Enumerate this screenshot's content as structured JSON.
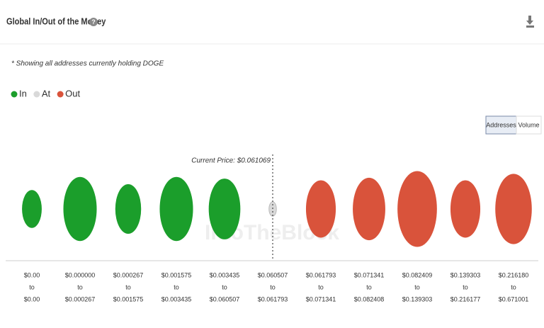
{
  "chart_data": {
    "type": "bubble",
    "title": "Global In/Out of the Money",
    "subtitle": "* Showing all addresses currently holding DOGE",
    "buttons": [
      "Addresses",
      "Volume"
    ],
    "annotation": "Current Price: $0.061069",
    "watermark": "IntoTheBlock",
    "categories": [
      [
        "$0.00",
        "to",
        "$0.00"
      ],
      [
        "$0.000000",
        "to",
        "$0.000267"
      ],
      [
        "$0.000267",
        "to",
        "$0.001575"
      ],
      [
        "$0.001575",
        "to",
        "$0.003435"
      ],
      [
        "$0.003435",
        "to",
        "$0.060507"
      ],
      [
        "$0.060507",
        "to",
        "$0.061793"
      ],
      [
        "$0.061793",
        "to",
        "$0.071341"
      ],
      [
        "$0.071341",
        "to",
        "$0.082408"
      ],
      [
        "$0.082409",
        "to",
        "$0.139303"
      ],
      [
        "$0.139303",
        "to",
        "$0.216177"
      ],
      [
        "$0.216180",
        "to",
        "$0.671001"
      ]
    ],
    "series": [
      {
        "name": "In",
        "color": "#1b9e2b",
        "values": [
          0.7,
          2.0,
          1.2,
          2.0,
          1.8,
          null,
          null,
          null,
          null,
          null,
          null
        ]
      },
      {
        "name": "At",
        "color": "#d9d9d9",
        "values": [
          null,
          null,
          null,
          null,
          null,
          0.1,
          null,
          null,
          null,
          null,
          null
        ]
      },
      {
        "name": "Out",
        "color": "#d9533b",
        "values": [
          null,
          null,
          null,
          null,
          null,
          null,
          1.6,
          1.9,
          2.8,
          1.6,
          2.4
        ]
      }
    ]
  }
}
